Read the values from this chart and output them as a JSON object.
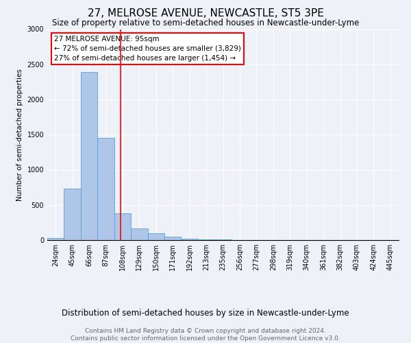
{
  "title": "27, MELROSE AVENUE, NEWCASTLE, ST5 3PE",
  "subtitle": "Size of property relative to semi-detached houses in Newcastle-under-Lyme",
  "xlabel": "Distribution of semi-detached houses by size in Newcastle-under-Lyme",
  "ylabel": "Number of semi-detached properties",
  "footer_line1": "Contains HM Land Registry data © Crown copyright and database right 2024.",
  "footer_line2": "Contains public sector information licensed under the Open Government Licence v3.0.",
  "bar_labels": [
    "24sqm",
    "45sqm",
    "66sqm",
    "87sqm",
    "108sqm",
    "129sqm",
    "150sqm",
    "171sqm",
    "192sqm",
    "213sqm",
    "235sqm",
    "256sqm",
    "277sqm",
    "298sqm",
    "319sqm",
    "340sqm",
    "361sqm",
    "382sqm",
    "403sqm",
    "424sqm",
    "445sqm"
  ],
  "bar_values": [
    30,
    730,
    2390,
    1450,
    380,
    165,
    95,
    50,
    20,
    10,
    8,
    3,
    1,
    1,
    0,
    0,
    0,
    0,
    0,
    0,
    0
  ],
  "bar_color": "#aec6e8",
  "bar_edge_color": "#5a9fd4",
  "annotation_line1": "27 MELROSE AVENUE: 95sqm",
  "annotation_line2": "← 72% of semi-detached houses are smaller (3,829)",
  "annotation_line3": "27% of semi-detached houses are larger (1,454) →",
  "ylim": [
    0,
    3000
  ],
  "yticks": [
    0,
    500,
    1000,
    1500,
    2000,
    2500,
    3000
  ],
  "title_fontsize": 11,
  "subtitle_fontsize": 8.5,
  "xlabel_fontsize": 8.5,
  "ylabel_fontsize": 7.5,
  "tick_fontsize": 7,
  "annotation_fontsize": 7.5,
  "footer_fontsize": 6.5,
  "background_color": "#eef2f8"
}
